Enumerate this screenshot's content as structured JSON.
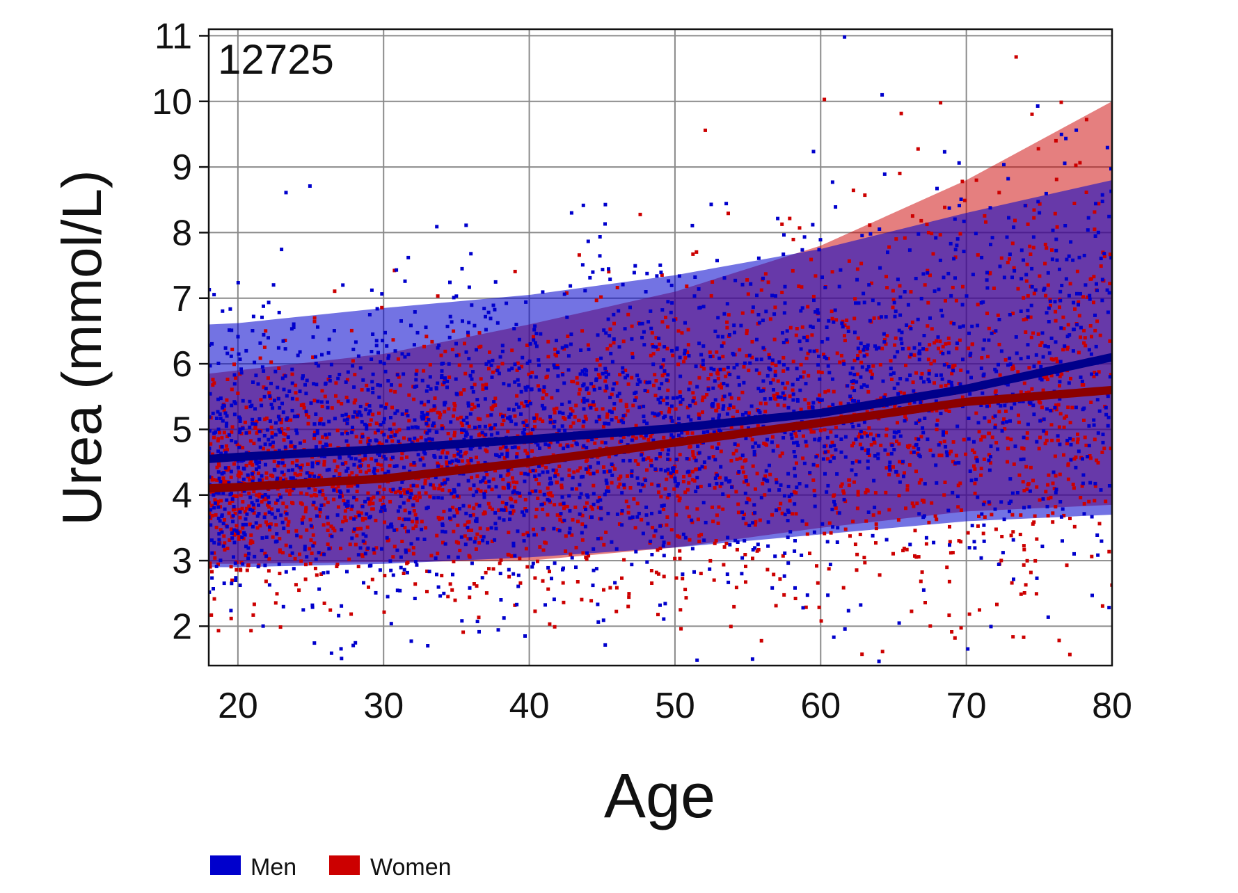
{
  "chart_data": {
    "type": "scatter",
    "annotation": "12725",
    "xlabel": "Age",
    "ylabel": "Urea (mmol/L)",
    "xlim": [
      18,
      80
    ],
    "ylim": [
      1.4,
      11.1
    ],
    "xticks": [
      20,
      30,
      40,
      50,
      60,
      70,
      80
    ],
    "yticks": [
      2,
      3,
      4,
      5,
      6,
      7,
      8,
      9,
      10,
      11
    ],
    "grid": true,
    "legend_position": "bottom-left",
    "series": [
      {
        "name": "Men",
        "color": "#0000cc",
        "line_color": "#00008b",
        "trend": {
          "x": [
            18,
            20,
            30,
            40,
            50,
            60,
            70,
            80
          ],
          "y": [
            4.55,
            4.58,
            4.7,
            4.85,
            5.02,
            5.25,
            5.62,
            6.1
          ]
        },
        "band": {
          "x": [
            18,
            20,
            30,
            40,
            50,
            60,
            70,
            80
          ],
          "lower": [
            2.9,
            2.9,
            2.95,
            3.05,
            3.2,
            3.4,
            3.6,
            3.7
          ],
          "upper": [
            6.6,
            6.62,
            6.85,
            7.05,
            7.35,
            7.75,
            8.3,
            8.8
          ]
        }
      },
      {
        "name": "Women",
        "color": "#cc0000",
        "line_color": "#8b0000",
        "trend": {
          "x": [
            18,
            20,
            30,
            40,
            50,
            60,
            70,
            80
          ],
          "y": [
            4.1,
            4.12,
            4.25,
            4.5,
            4.8,
            5.1,
            5.42,
            5.6
          ]
        },
        "band": {
          "x": [
            18,
            20,
            30,
            40,
            50,
            60,
            70,
            80
          ],
          "lower": [
            2.95,
            2.95,
            2.98,
            3.0,
            3.2,
            3.5,
            3.75,
            3.85
          ],
          "upper": [
            5.85,
            5.9,
            6.15,
            6.6,
            7.1,
            7.8,
            8.8,
            10.0
          ]
        }
      }
    ]
  },
  "legend": {
    "items": [
      {
        "label": "Men",
        "color": "#0000cc"
      },
      {
        "label": "Women",
        "color": "#cc0000"
      }
    ]
  }
}
